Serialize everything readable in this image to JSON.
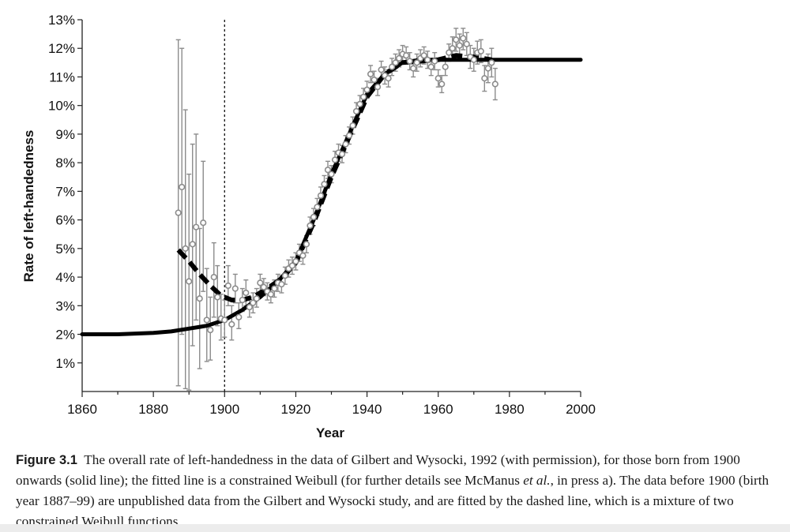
{
  "chart_data": {
    "type": "scatter",
    "xlabel": "Year",
    "ylabel": "Rate of left-handedness",
    "xlim": [
      1860,
      2000
    ],
    "ylim": [
      0,
      13
    ],
    "xticks": [
      1860,
      1880,
      1900,
      1920,
      1940,
      1960,
      1980,
      2000
    ],
    "yticks": [
      "1%",
      "2%",
      "3%",
      "4%",
      "5%",
      "6%",
      "7%",
      "8%",
      "9%",
      "10%",
      "11%",
      "12%",
      "13%"
    ],
    "ytick_values": [
      1,
      2,
      3,
      4,
      5,
      6,
      7,
      8,
      9,
      10,
      11,
      12,
      13
    ],
    "reference_line_x": 1900,
    "series": [
      {
        "name": "Gilbert and Wysocki data (with error bars)",
        "style": "open-circle",
        "points": [
          {
            "x": 1887,
            "y": 6.25,
            "lo": 0.2,
            "hi": 12.3
          },
          {
            "x": 1888,
            "y": 7.15,
            "lo": 2.0,
            "hi": 12.0
          },
          {
            "x": 1889,
            "y": 5.0,
            "lo": 0.1,
            "hi": 9.85
          },
          {
            "x": 1890,
            "y": 3.85,
            "lo": 0.05,
            "hi": 7.6
          },
          {
            "x": 1891,
            "y": 5.15,
            "lo": 1.6,
            "hi": 8.65
          },
          {
            "x": 1892,
            "y": 5.75,
            "lo": 2.5,
            "hi": 9.0
          },
          {
            "x": 1893,
            "y": 3.25,
            "lo": 0.8,
            "hi": 5.7
          },
          {
            "x": 1894,
            "y": 5.9,
            "lo": 3.5,
            "hi": 8.05
          },
          {
            "x": 1895,
            "y": 2.5,
            "lo": 1.05,
            "hi": 4.3
          },
          {
            "x": 1896,
            "y": 2.15,
            "lo": 1.1,
            "hi": 3.3
          },
          {
            "x": 1897,
            "y": 4.0,
            "lo": 2.6,
            "hi": 5.2
          },
          {
            "x": 1898,
            "y": 3.3,
            "lo": 2.3,
            "hi": 4.4
          },
          {
            "x": 1899,
            "y": 2.55,
            "lo": 1.8,
            "hi": 3.4
          },
          {
            "x": 1900,
            "y": 2.5,
            "lo": 1.9,
            "hi": 3.2
          },
          {
            "x": 1901,
            "y": 3.7,
            "lo": 3.0,
            "hi": 4.4
          },
          {
            "x": 1902,
            "y": 2.35,
            "lo": 1.8,
            "hi": 3.0
          },
          {
            "x": 1903,
            "y": 3.6,
            "lo": 3.1,
            "hi": 4.1
          },
          {
            "x": 1904,
            "y": 2.6,
            "lo": 2.2,
            "hi": 3.1
          },
          {
            "x": 1905,
            "y": 3.2,
            "lo": 2.8,
            "hi": 3.6
          },
          {
            "x": 1906,
            "y": 3.45,
            "lo": 3.0,
            "hi": 3.9
          },
          {
            "x": 1907,
            "y": 2.95,
            "lo": 2.6,
            "hi": 3.3
          },
          {
            "x": 1908,
            "y": 3.1,
            "lo": 2.75,
            "hi": 3.45
          },
          {
            "x": 1909,
            "y": 3.25,
            "lo": 2.95,
            "hi": 3.6
          },
          {
            "x": 1910,
            "y": 3.8,
            "lo": 3.5,
            "hi": 4.1
          },
          {
            "x": 1911,
            "y": 3.65,
            "lo": 3.35,
            "hi": 3.95
          },
          {
            "x": 1912,
            "y": 3.5,
            "lo": 3.2,
            "hi": 3.8
          },
          {
            "x": 1913,
            "y": 3.4,
            "lo": 3.1,
            "hi": 3.7
          },
          {
            "x": 1914,
            "y": 3.6,
            "lo": 3.3,
            "hi": 3.9
          },
          {
            "x": 1915,
            "y": 3.8,
            "lo": 3.5,
            "hi": 4.1
          },
          {
            "x": 1916,
            "y": 3.75,
            "lo": 3.45,
            "hi": 4.05
          },
          {
            "x": 1917,
            "y": 4.05,
            "lo": 3.75,
            "hi": 4.35
          },
          {
            "x": 1918,
            "y": 4.3,
            "lo": 4.0,
            "hi": 4.6
          },
          {
            "x": 1919,
            "y": 4.4,
            "lo": 4.1,
            "hi": 4.7
          },
          {
            "x": 1920,
            "y": 4.55,
            "lo": 4.25,
            "hi": 4.85
          },
          {
            "x": 1921,
            "y": 4.85,
            "lo": 4.55,
            "hi": 5.15
          },
          {
            "x": 1922,
            "y": 4.75,
            "lo": 4.45,
            "hi": 5.05
          },
          {
            "x": 1923,
            "y": 5.15,
            "lo": 4.85,
            "hi": 5.45
          },
          {
            "x": 1924,
            "y": 5.8,
            "lo": 5.5,
            "hi": 6.1
          },
          {
            "x": 1925,
            "y": 6.1,
            "lo": 5.8,
            "hi": 6.4
          },
          {
            "x": 1926,
            "y": 6.45,
            "lo": 6.15,
            "hi": 6.75
          },
          {
            "x": 1927,
            "y": 6.85,
            "lo": 6.55,
            "hi": 7.15
          },
          {
            "x": 1928,
            "y": 7.25,
            "lo": 6.95,
            "hi": 7.55
          },
          {
            "x": 1929,
            "y": 7.75,
            "lo": 7.45,
            "hi": 8.05
          },
          {
            "x": 1930,
            "y": 7.6,
            "lo": 7.3,
            "hi": 7.9
          },
          {
            "x": 1931,
            "y": 8.1,
            "lo": 7.8,
            "hi": 8.4
          },
          {
            "x": 1932,
            "y": 8.35,
            "lo": 8.05,
            "hi": 8.65
          },
          {
            "x": 1933,
            "y": 8.3,
            "lo": 8.0,
            "hi": 8.6
          },
          {
            "x": 1934,
            "y": 8.65,
            "lo": 8.35,
            "hi": 8.95
          },
          {
            "x": 1935,
            "y": 8.95,
            "lo": 8.65,
            "hi": 9.25
          },
          {
            "x": 1936,
            "y": 9.3,
            "lo": 9.0,
            "hi": 9.6
          },
          {
            "x": 1937,
            "y": 9.8,
            "lo": 9.5,
            "hi": 10.1
          },
          {
            "x": 1938,
            "y": 10.05,
            "lo": 9.75,
            "hi": 10.35
          },
          {
            "x": 1939,
            "y": 10.3,
            "lo": 10.0,
            "hi": 10.6
          },
          {
            "x": 1940,
            "y": 10.55,
            "lo": 10.25,
            "hi": 10.85
          },
          {
            "x": 1941,
            "y": 11.1,
            "lo": 10.8,
            "hi": 11.4
          },
          {
            "x": 1942,
            "y": 10.9,
            "lo": 10.6,
            "hi": 11.2
          },
          {
            "x": 1943,
            "y": 10.65,
            "lo": 10.35,
            "hi": 10.95
          },
          {
            "x": 1944,
            "y": 11.25,
            "lo": 10.95,
            "hi": 11.55
          },
          {
            "x": 1945,
            "y": 11.05,
            "lo": 10.75,
            "hi": 11.35
          },
          {
            "x": 1946,
            "y": 10.95,
            "lo": 10.65,
            "hi": 11.25
          },
          {
            "x": 1947,
            "y": 11.35,
            "lo": 11.05,
            "hi": 11.65
          },
          {
            "x": 1948,
            "y": 11.5,
            "lo": 11.2,
            "hi": 11.8
          },
          {
            "x": 1949,
            "y": 11.65,
            "lo": 11.35,
            "hi": 11.95
          },
          {
            "x": 1950,
            "y": 11.8,
            "lo": 11.5,
            "hi": 12.1
          },
          {
            "x": 1951,
            "y": 11.75,
            "lo": 11.45,
            "hi": 12.05
          },
          {
            "x": 1952,
            "y": 11.55,
            "lo": 11.25,
            "hi": 11.85
          },
          {
            "x": 1953,
            "y": 11.3,
            "lo": 11.0,
            "hi": 11.6
          },
          {
            "x": 1954,
            "y": 11.5,
            "lo": 11.2,
            "hi": 11.8
          },
          {
            "x": 1955,
            "y": 11.65,
            "lo": 11.35,
            "hi": 11.95
          },
          {
            "x": 1956,
            "y": 11.75,
            "lo": 11.45,
            "hi": 12.05
          },
          {
            "x": 1957,
            "y": 11.6,
            "lo": 11.3,
            "hi": 11.9
          },
          {
            "x": 1958,
            "y": 11.35,
            "lo": 11.05,
            "hi": 11.65
          },
          {
            "x": 1959,
            "y": 11.55,
            "lo": 11.25,
            "hi": 11.85
          },
          {
            "x": 1960,
            "y": 10.95,
            "lo": 10.65,
            "hi": 11.25
          },
          {
            "x": 1961,
            "y": 10.75,
            "lo": 10.45,
            "hi": 11.05
          },
          {
            "x": 1962,
            "y": 11.35,
            "lo": 11.05,
            "hi": 11.65
          },
          {
            "x": 1963,
            "y": 11.85,
            "lo": 11.55,
            "hi": 12.15
          },
          {
            "x": 1964,
            "y": 12.0,
            "lo": 11.6,
            "hi": 12.4
          },
          {
            "x": 1965,
            "y": 12.3,
            "lo": 11.9,
            "hi": 12.7
          },
          {
            "x": 1966,
            "y": 12.1,
            "lo": 11.7,
            "hi": 12.5
          },
          {
            "x": 1967,
            "y": 12.35,
            "lo": 11.95,
            "hi": 12.7
          },
          {
            "x": 1968,
            "y": 12.15,
            "lo": 11.75,
            "hi": 12.55
          },
          {
            "x": 1969,
            "y": 11.7,
            "lo": 11.3,
            "hi": 12.1
          },
          {
            "x": 1970,
            "y": 11.6,
            "lo": 11.2,
            "hi": 12.0
          },
          {
            "x": 1971,
            "y": 11.85,
            "lo": 11.45,
            "hi": 12.25
          },
          {
            "x": 1972,
            "y": 11.9,
            "lo": 11.5,
            "hi": 12.3
          },
          {
            "x": 1973,
            "y": 10.95,
            "lo": 10.5,
            "hi": 11.4
          },
          {
            "x": 1974,
            "y": 11.3,
            "lo": 10.8,
            "hi": 11.8
          },
          {
            "x": 1975,
            "y": 11.5,
            "lo": 11.0,
            "hi": 12.0
          },
          {
            "x": 1976,
            "y": 10.75,
            "lo": 10.2,
            "hi": 11.3
          }
        ]
      },
      {
        "name": "Constrained Weibull fit (solid line)",
        "style": "solid",
        "points": [
          [
            1860,
            2.0
          ],
          [
            1870,
            2.0
          ],
          [
            1880,
            2.05
          ],
          [
            1885,
            2.1
          ],
          [
            1890,
            2.2
          ],
          [
            1895,
            2.3
          ],
          [
            1900,
            2.5
          ],
          [
            1905,
            2.85
          ],
          [
            1910,
            3.3
          ],
          [
            1915,
            3.85
          ],
          [
            1920,
            4.55
          ],
          [
            1925,
            6.0
          ],
          [
            1930,
            7.6
          ],
          [
            1935,
            9.0
          ],
          [
            1940,
            10.4
          ],
          [
            1945,
            11.1
          ],
          [
            1950,
            11.5
          ],
          [
            1955,
            11.6
          ],
          [
            1960,
            11.6
          ],
          [
            1970,
            11.6
          ],
          [
            1980,
            11.6
          ],
          [
            2000,
            11.6
          ]
        ]
      },
      {
        "name": "Mixture of two constrained Weibull functions (dashed line)",
        "style": "dashed",
        "points": [
          [
            1887,
            4.95
          ],
          [
            1890,
            4.55
          ],
          [
            1893,
            4.1
          ],
          [
            1896,
            3.7
          ],
          [
            1899,
            3.35
          ],
          [
            1902,
            3.2
          ],
          [
            1905,
            3.2
          ],
          [
            1908,
            3.3
          ],
          [
            1912,
            3.6
          ],
          [
            1916,
            3.95
          ],
          [
            1920,
            4.5
          ],
          [
            1925,
            5.9
          ],
          [
            1930,
            7.5
          ],
          [
            1935,
            8.9
          ],
          [
            1940,
            10.3
          ],
          [
            1945,
            11.1
          ],
          [
            1950,
            11.5
          ],
          [
            1955,
            11.55
          ],
          [
            1960,
            11.6
          ],
          [
            1965,
            11.75
          ],
          [
            1970,
            11.7
          ],
          [
            1975,
            11.6
          ]
        ]
      }
    ],
    "colors": {
      "axis": "#222222",
      "data": "#8c8c8c",
      "fit": "#000000"
    }
  },
  "caption": {
    "figure_label": "Figure 3.1",
    "text_before_italic": "The overall rate of left-handedness in the data of Gilbert and Wysocki, 1992 (with permission), for those born from 1900 onwards (solid line); the fitted line is a constrained Weibull (for further details see McManus",
    "italic": "et al.",
    "text_after_italic": ", in press a). The data before 1900 (birth year 1887–99) are unpublished data from the Gilbert and Wysocki study, and are fitted by the dashed line, which is a mixture of two constrained Weibull functions."
  }
}
